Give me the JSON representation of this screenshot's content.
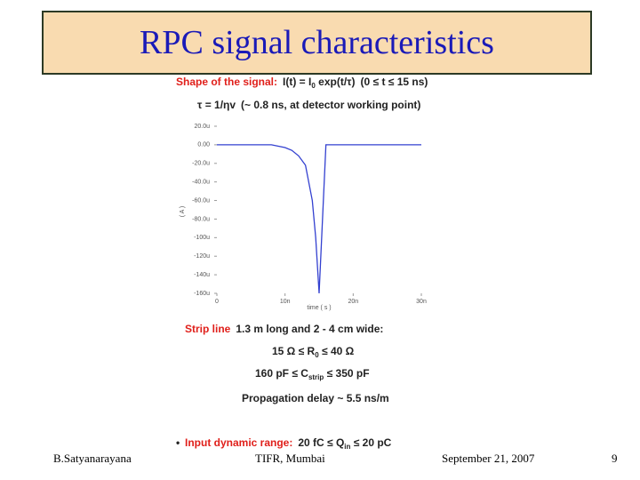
{
  "header": {
    "title": "RPC signal characteristics"
  },
  "lines": [
    [
      {
        "text": "Shape of the signal:",
        "color": "#e0201b"
      },
      {
        "text": "I(t) = I"
      },
      {
        "text": "0",
        "sub": true
      },
      {
        "text": " exp(t/τ)"
      },
      {
        "text": "(0 ≤ t ≤ 15 ns)"
      }
    ],
    [
      {
        "text": "τ = 1/ηv"
      },
      {
        "text": "(~ 0.8 ns, at detector working point)"
      }
    ],
    [
      {
        "text": "Strip line",
        "color": "#e0201b"
      },
      {
        "text": "1.3 m long and 2 - 4 cm wide:"
      }
    ],
    [
      {
        "text": "15 Ω ≤ R"
      },
      {
        "text": "0",
        "sub": true
      },
      {
        "text": " ≤ 40 Ω"
      }
    ],
    [
      {
        "text": "160 pF ≤ C"
      },
      {
        "text": "strip",
        "sub": true
      },
      {
        "text": " ≤ 350 pF"
      }
    ],
    [
      {
        "text": "Propagation delay ~ 5.5 ns/m"
      }
    ],
    [
      {
        "text": "Input dynamic range:",
        "color": "#e0201b"
      },
      {
        "text": "20 fC ≤ Q"
      },
      {
        "text": "in",
        "sub": true
      },
      {
        "text": " ≤ 20 pC"
      }
    ]
  ],
  "footer": {
    "author": "B.Satyanarayana",
    "place": "TIFR, Mumbai",
    "date": "September 21, 2007",
    "page": "9"
  },
  "chart_data": {
    "type": "line",
    "x_label": "time ( s )",
    "y_label": "( A )",
    "x": [
      0,
      8,
      10,
      11,
      12,
      13,
      14,
      14.5,
      15,
      15.5,
      16,
      30
    ],
    "series": [
      {
        "color": "#3340d0",
        "values": [
          0,
          0,
          -3,
          -6,
          -12,
          -22,
          -60,
          -100,
          -160,
          -80,
          0,
          0
        ]
      }
    ],
    "xlim": [
      0,
      30
    ],
    "xticks": [
      0,
      {
        "value": 10,
        "label": "10n"
      },
      {
        "value": 20,
        "label": "20n"
      },
      {
        "value": 30,
        "label": "30n"
      }
    ],
    "ylim": [
      -160,
      20
    ],
    "yticks": [
      {
        "value": 20,
        "label": "20.0u"
      },
      {
        "value": 0,
        "label": "0.00"
      },
      {
        "value": -20,
        "label": "-20.0u"
      },
      {
        "value": -40,
        "label": "-40.0u"
      },
      {
        "value": -60,
        "label": "-60.0u"
      },
      {
        "value": -80,
        "label": "-80.0u"
      },
      {
        "value": -100,
        "label": "-100u"
      },
      {
        "value": -120,
        "label": "-120u"
      },
      {
        "value": -140,
        "label": "-140u"
      },
      {
        "value": -160,
        "label": "-160u"
      }
    ]
  }
}
